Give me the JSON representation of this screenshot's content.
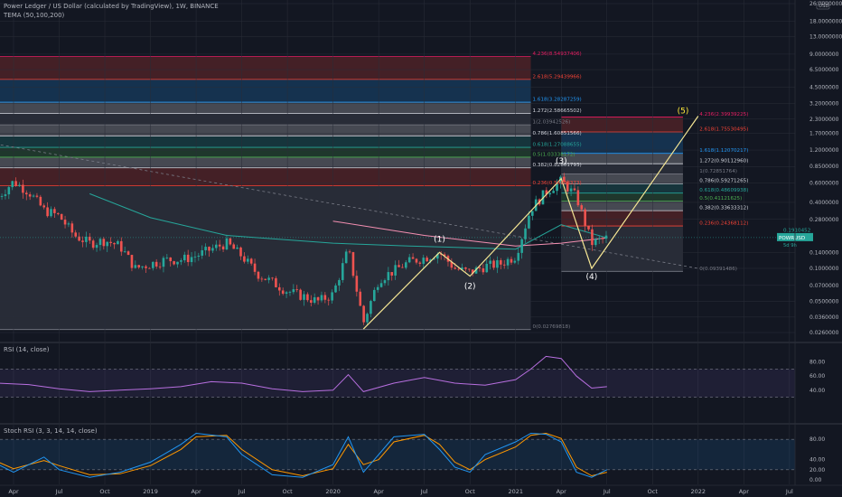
{
  "header": {
    "title": "Power Ledger / US Dollar (calculated by TradingView), 1W, BINANCE",
    "indicator": "TEMA (50,100,200)",
    "currency": "USD"
  },
  "chart_data": {
    "type": "candlestick",
    "symbol": "POWRUSD",
    "last_price": "0.1910452",
    "countdown": "5d 9h",
    "y_scale": "log",
    "y_ticks": [
      "26.0000000",
      "18.0000000",
      "13.0000000",
      "9.0000000",
      "6.5000000",
      "4.5000000",
      "3.2000000",
      "2.3000000",
      "1.7000000",
      "1.2000000",
      "0.8500000",
      "0.6000000",
      "0.4000000",
      "0.2800000",
      "0.1400000",
      "0.1000000",
      "0.0700000",
      "0.0500000",
      "0.0360000",
      "0.0260000"
    ],
    "y_tick_values": [
      26,
      18,
      13,
      9,
      6.5,
      4.5,
      3.2,
      2.3,
      1.7,
      1.2,
      0.85,
      0.6,
      0.4,
      0.28,
      0.14,
      0.1,
      0.07,
      0.05,
      0.036,
      0.026
    ],
    "x_ticks": [
      "Apr",
      "Jul",
      "Oct",
      "2019",
      "Apr",
      "Jul",
      "Oct",
      "2020",
      "Apr",
      "Jul",
      "Oct",
      "2021",
      "Apr",
      "Jul",
      "Oct",
      "2022",
      "Apr",
      "Jul"
    ],
    "x_tick_dates": [
      "2018-04",
      "2018-07",
      "2018-10",
      "2019-01",
      "2019-04",
      "2019-07",
      "2019-10",
      "2020-01",
      "2020-04",
      "2020-07",
      "2020-10",
      "2021-01",
      "2021-04",
      "2021-07",
      "2021-10",
      "2022-01",
      "2022-04",
      "2022-07"
    ],
    "price_path": [
      [
        "2018-03",
        0.45
      ],
      [
        "2018-04",
        0.62
      ],
      [
        "2018-05",
        0.5
      ],
      [
        "2018-06",
        0.34
      ],
      [
        "2018-07",
        0.3
      ],
      [
        "2018-08",
        0.2
      ],
      [
        "2018-09",
        0.17
      ],
      [
        "2018-10",
        0.18
      ],
      [
        "2018-11",
        0.16
      ],
      [
        "2018-12",
        0.1
      ],
      [
        "2019-01",
        0.11
      ],
      [
        "2019-02",
        0.12
      ],
      [
        "2019-03",
        0.12
      ],
      [
        "2019-04",
        0.13
      ],
      [
        "2019-05",
        0.15
      ],
      [
        "2019-06",
        0.17
      ],
      [
        "2019-07",
        0.13
      ],
      [
        "2019-08",
        0.09
      ],
      [
        "2019-09",
        0.075
      ],
      [
        "2019-10",
        0.062
      ],
      [
        "2019-11",
        0.056
      ],
      [
        "2019-12",
        0.05
      ],
      [
        "2020-01",
        0.058
      ],
      [
        "2020-02",
        0.15
      ],
      [
        "2020-03",
        0.032
      ],
      [
        "2020-04",
        0.08
      ],
      [
        "2020-05",
        0.095
      ],
      [
        "2020-06",
        0.115
      ],
      [
        "2020-07",
        0.125
      ],
      [
        "2020-08",
        0.14
      ],
      [
        "2020-09",
        0.1
      ],
      [
        "2020-10",
        0.092
      ],
      [
        "2020-11",
        0.105
      ],
      [
        "2020-12",
        0.11
      ],
      [
        "2021-01",
        0.13
      ],
      [
        "2021-02",
        0.35
      ],
      [
        "2021-03",
        0.5
      ],
      [
        "2021-04",
        0.63
      ],
      [
        "2021-05",
        0.45
      ],
      [
        "2021-06",
        0.17
      ],
      [
        "2021-07",
        0.19
      ]
    ],
    "tema_series": [
      {
        "values": [
          [
            "2018-09",
            0.48
          ],
          [
            "2019-01",
            0.29
          ],
          [
            "2019-06",
            0.2
          ],
          [
            "2020-01",
            0.17
          ],
          [
            "2020-06",
            0.16
          ],
          [
            "2021-01",
            0.15
          ],
          [
            "2021-04",
            0.25
          ],
          [
            "2021-07",
            0.19
          ]
        ]
      },
      {
        "values": [
          [
            "2020-01",
            0.27
          ],
          [
            "2020-07",
            0.2
          ],
          [
            "2021-01",
            0.16
          ],
          [
            "2021-04",
            0.17
          ],
          [
            "2021-07",
            0.19
          ]
        ]
      }
    ],
    "trendline": [
      [
        "2017-12",
        1.6
      ],
      [
        "2022-01",
        0.1
      ]
    ],
    "fib_extension_large": {
      "x_range": [
        "2018-01",
        "2021-02"
      ],
      "levels": [
        {
          "label": "4.236(8.54937406)",
          "value": 8.54937406,
          "color": "#e91e63"
        },
        {
          "label": "2.618(5.29439966)",
          "value": 5.29439966,
          "color": "#f44336"
        },
        {
          "label": "1.618(3.28287259)",
          "value": 3.28287259,
          "color": "#2196f3"
        },
        {
          "label": "1.272(2.58665502)",
          "value": 2.58665502,
          "color": "#ffffff"
        },
        {
          "label": "1(2.03942526)",
          "value": 2.03942526,
          "color": "#787b86"
        },
        {
          "label": "0.786(1.60851566)",
          "value": 1.60851566,
          "color": "#ffffff"
        },
        {
          "label": "0.618(1.27088655)",
          "value": 1.27088655,
          "color": "#26a69a"
        },
        {
          "label": "0.5(1.03338172)",
          "value": 1.03338172,
          "color": "#4caf50"
        },
        {
          "label": "0.382(0.82661793)",
          "value": 0.82661793,
          "color": "#ffffff"
        },
        {
          "label": "0.236(0.56688373)",
          "value": 0.56688373,
          "color": "#f44336"
        },
        {
          "label": "0(0.02769818)",
          "value": 0.02769818,
          "color": "#787b86"
        }
      ]
    },
    "fib_extension_small": {
      "x_range": [
        "2021-04",
        "2021-12"
      ],
      "levels": [
        {
          "label": "4.236(2.39939225)",
          "value": 2.39939225,
          "color": "#e91e63"
        },
        {
          "label": "2.618(1.75530495)",
          "value": 1.75530495,
          "color": "#f44336"
        },
        {
          "label": "1.618(1.12070217)",
          "value": 1.12070217,
          "color": "#2196f3"
        },
        {
          "label": "1.272(0.90112960)",
          "value": 0.9011296,
          "color": "#ffffff"
        },
        {
          "label": "1(0.72851764)",
          "value": 0.72851764,
          "color": "#787b86"
        },
        {
          "label": "0.786(0.59271265)",
          "value": 0.59271265,
          "color": "#ffffff"
        },
        {
          "label": "0.618(0.48609938)",
          "value": 0.48609938,
          "color": "#26a69a"
        },
        {
          "label": "0.5(0.41121625)",
          "value": 0.41121625,
          "color": "#4caf50"
        },
        {
          "label": "0.382(0.33633312)",
          "value": 0.33633312,
          "color": "#ffffff"
        },
        {
          "label": "0.236(0.24368112)",
          "value": 0.24368112,
          "color": "#f44336"
        },
        {
          "label": "0(0.09391486)",
          "value": 0.09391486,
          "color": "#787b86"
        }
      ]
    },
    "elliott_wave": {
      "points": [
        [
          "2020-03",
          0.028
        ],
        [
          "2020-08",
          0.14
        ],
        [
          "2020-10",
          0.085
        ],
        [
          "2021-04",
          0.66
        ],
        [
          "2021-06",
          0.1
        ],
        [
          "2022-01",
          2.45
        ]
      ],
      "labels": [
        {
          "text": "(1)",
          "x": "2020-08",
          "y": 0.175,
          "color": "#ffffff"
        },
        {
          "text": "(2)",
          "x": "2020-10",
          "y": 0.065,
          "color": "#ffffff"
        },
        {
          "text": "(3)",
          "x": "2021-04",
          "y": 0.9,
          "color": "#ffffff"
        },
        {
          "text": "(4)",
          "x": "2021-06",
          "y": 0.08,
          "color": "#ffffff"
        },
        {
          "text": "(5)",
          "x": "2021-12",
          "y": 2.6,
          "color": "#ffeb3b"
        }
      ]
    },
    "rsi": {
      "title": "RSI (14, close)",
      "ticks": [
        "80.00",
        "60.00",
        "40.00"
      ],
      "tick_values": [
        80,
        60,
        40
      ],
      "bands": [
        70,
        30
      ],
      "values": [
        [
          "2018-03",
          50
        ],
        [
          "2018-05",
          48
        ],
        [
          "2018-07",
          42
        ],
        [
          "2018-09",
          38
        ],
        [
          "2018-11",
          40
        ],
        [
          "2019-01",
          42
        ],
        [
          "2019-03",
          45
        ],
        [
          "2019-05",
          52
        ],
        [
          "2019-07",
          50
        ],
        [
          "2019-09",
          42
        ],
        [
          "2019-11",
          38
        ],
        [
          "2020-01",
          40
        ],
        [
          "2020-02",
          62
        ],
        [
          "2020-03",
          38
        ],
        [
          "2020-05",
          50
        ],
        [
          "2020-07",
          58
        ],
        [
          "2020-09",
          50
        ],
        [
          "2020-11",
          47
        ],
        [
          "2021-01",
          55
        ],
        [
          "2021-02",
          70
        ],
        [
          "2021-03",
          88
        ],
        [
          "2021-04",
          85
        ],
        [
          "2021-05",
          60
        ],
        [
          "2021-06",
          43
        ],
        [
          "2021-07",
          45
        ]
      ]
    },
    "stoch_rsi": {
      "title": "Stoch RSI (3, 3, 14, 14, close)",
      "ticks": [
        "80.00",
        "40.00",
        "20.00",
        "0.00"
      ],
      "tick_values": [
        80,
        40,
        20,
        0
      ],
      "bands": [
        80,
        20
      ],
      "k": [
        [
          "2018-03",
          30
        ],
        [
          "2018-04",
          15
        ],
        [
          "2018-06",
          45
        ],
        [
          "2018-07",
          20
        ],
        [
          "2018-09",
          5
        ],
        [
          "2018-11",
          15
        ],
        [
          "2019-01",
          35
        ],
        [
          "2019-03",
          70
        ],
        [
          "2019-04",
          92
        ],
        [
          "2019-06",
          85
        ],
        [
          "2019-07",
          50
        ],
        [
          "2019-09",
          10
        ],
        [
          "2019-11",
          5
        ],
        [
          "2020-01",
          30
        ],
        [
          "2020-02",
          85
        ],
        [
          "2020-03",
          15
        ],
        [
          "2020-04",
          50
        ],
        [
          "2020-05",
          85
        ],
        [
          "2020-07",
          90
        ],
        [
          "2020-08",
          60
        ],
        [
          "2020-09",
          25
        ],
        [
          "2020-10",
          15
        ],
        [
          "2020-11",
          50
        ],
        [
          "2021-01",
          75
        ],
        [
          "2021-02",
          92
        ],
        [
          "2021-03",
          90
        ],
        [
          "2021-04",
          75
        ],
        [
          "2021-05",
          15
        ],
        [
          "2021-06",
          5
        ],
        [
          "2021-07",
          20
        ]
      ],
      "d": [
        [
          "2018-03",
          35
        ],
        [
          "2018-04",
          22
        ],
        [
          "2018-06",
          38
        ],
        [
          "2018-07",
          28
        ],
        [
          "2018-09",
          10
        ],
        [
          "2018-11",
          12
        ],
        [
          "2019-01",
          28
        ],
        [
          "2019-03",
          60
        ],
        [
          "2019-04",
          85
        ],
        [
          "2019-06",
          88
        ],
        [
          "2019-07",
          60
        ],
        [
          "2019-09",
          20
        ],
        [
          "2019-11",
          8
        ],
        [
          "2020-01",
          22
        ],
        [
          "2020-02",
          70
        ],
        [
          "2020-03",
          30
        ],
        [
          "2020-04",
          40
        ],
        [
          "2020-05",
          75
        ],
        [
          "2020-07",
          88
        ],
        [
          "2020-08",
          70
        ],
        [
          "2020-09",
          35
        ],
        [
          "2020-10",
          20
        ],
        [
          "2020-11",
          40
        ],
        [
          "2021-01",
          65
        ],
        [
          "2021-02",
          88
        ],
        [
          "2021-03",
          92
        ],
        [
          "2021-04",
          82
        ],
        [
          "2021-05",
          25
        ],
        [
          "2021-06",
          8
        ],
        [
          "2021-07",
          15
        ]
      ]
    }
  }
}
